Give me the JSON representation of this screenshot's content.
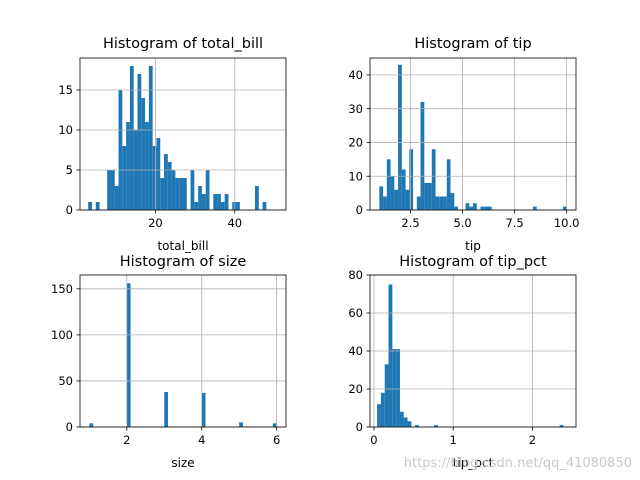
{
  "figure": {
    "watermark": "https://blog.csdn.net/qq_41080850"
  },
  "chart_data": [
    {
      "type": "bar",
      "title": "Histogram of total_bill",
      "xlabel": "total_bill",
      "ylabel": "",
      "xlim": [
        1.0,
        52.9
      ],
      "ylim": [
        0,
        19
      ],
      "grid": true,
      "xticks": [
        {
          "v": 20,
          "label": "20"
        },
        {
          "v": 40,
          "label": "40"
        }
      ],
      "yticks": [
        {
          "v": 0,
          "label": "0"
        },
        {
          "v": 5,
          "label": "5"
        },
        {
          "v": 10,
          "label": "10"
        },
        {
          "v": 15,
          "label": "15"
        }
      ],
      "bin_start": 3.07,
      "bin_width": 0.955,
      "values": [
        1,
        0,
        1,
        0,
        0,
        5,
        5,
        3,
        15,
        8,
        11,
        18,
        10,
        17,
        14,
        11,
        18,
        8,
        9,
        4,
        7,
        6,
        5,
        4,
        4,
        4,
        0,
        5,
        1,
        3,
        2,
        5,
        0,
        2,
        2,
        1,
        2,
        0,
        1,
        1,
        0,
        0,
        0,
        0,
        3,
        0,
        1
      ]
    },
    {
      "type": "bar",
      "title": "Histogram of tip",
      "xlabel": "tip",
      "ylabel": "",
      "xlim": [
        0.55,
        10.45
      ],
      "ylim": [
        0,
        45
      ],
      "grid": true,
      "xticks": [
        {
          "v": 2.5,
          "label": "2.5"
        },
        {
          "v": 5.0,
          "label": "5.0"
        },
        {
          "v": 7.5,
          "label": "7.5"
        },
        {
          "v": 10.0,
          "label": "10.0"
        }
      ],
      "yticks": [
        {
          "v": 0,
          "label": "0"
        },
        {
          "v": 10,
          "label": "10"
        },
        {
          "v": 20,
          "label": "20"
        },
        {
          "v": 30,
          "label": "30"
        },
        {
          "v": 40,
          "label": "40"
        }
      ],
      "bin_start": 1.0,
      "bin_width": 0.18,
      "values": [
        7,
        4,
        15,
        10,
        6,
        43,
        12,
        6,
        18,
        0,
        4,
        32,
        8,
        8,
        18,
        4,
        4,
        4,
        15,
        5,
        1,
        0,
        0,
        2,
        1,
        2,
        0,
        1,
        1,
        1,
        0,
        0,
        0,
        0,
        0,
        0,
        0,
        0,
        0,
        0,
        0,
        1,
        0,
        0,
        0,
        0,
        0,
        0,
        0,
        1
      ]
    },
    {
      "type": "bar",
      "title": "Histogram of size",
      "xlabel": "size",
      "ylabel": "",
      "xlim": [
        0.75,
        6.25
      ],
      "ylim": [
        0,
        165
      ],
      "grid": true,
      "xticks": [
        {
          "v": 2,
          "label": "2"
        },
        {
          "v": 4,
          "label": "4"
        },
        {
          "v": 6,
          "label": "6"
        }
      ],
      "yticks": [
        {
          "v": 0,
          "label": "0"
        },
        {
          "v": 50,
          "label": "50"
        },
        {
          "v": 100,
          "label": "100"
        },
        {
          "v": 150,
          "label": "150"
        }
      ],
      "bin_start": 1.0,
      "bin_width": 0.1,
      "values": [
        4,
        0,
        0,
        0,
        0,
        0,
        0,
        0,
        0,
        0,
        156,
        0,
        0,
        0,
        0,
        0,
        0,
        0,
        0,
        0,
        38,
        0,
        0,
        0,
        0,
        0,
        0,
        0,
        0,
        0,
        37,
        0,
        0,
        0,
        0,
        0,
        0,
        0,
        0,
        0,
        5,
        0,
        0,
        0,
        0,
        0,
        0,
        0,
        0,
        4
      ]
    },
    {
      "type": "bar",
      "title": "Histogram of tip_pct",
      "xlabel": "tip_pct",
      "ylabel": "",
      "xlim": [
        -0.05,
        2.55
      ],
      "ylim": [
        0,
        80
      ],
      "grid": true,
      "xticks": [
        {
          "v": 0,
          "label": "0"
        },
        {
          "v": 1,
          "label": "1"
        },
        {
          "v": 2,
          "label": "2"
        }
      ],
      "yticks": [
        {
          "v": 0,
          "label": "0"
        },
        {
          "v": 20,
          "label": "20"
        },
        {
          "v": 40,
          "label": "40"
        },
        {
          "v": 60,
          "label": "60"
        },
        {
          "v": 80,
          "label": "80"
        }
      ],
      "bin_start": 0.04,
      "bin_width": 0.048,
      "values": [
        12,
        18,
        33,
        75,
        41,
        41,
        8,
        5,
        3,
        0,
        1,
        0,
        0,
        0,
        0,
        1,
        0,
        0,
        0,
        0,
        0,
        0,
        0,
        0,
        0,
        0,
        0,
        0,
        0,
        0,
        0,
        0,
        0,
        0,
        0,
        0,
        0,
        0,
        0,
        0,
        0,
        0,
        0,
        0,
        0,
        0,
        0,
        0,
        1
      ]
    }
  ]
}
